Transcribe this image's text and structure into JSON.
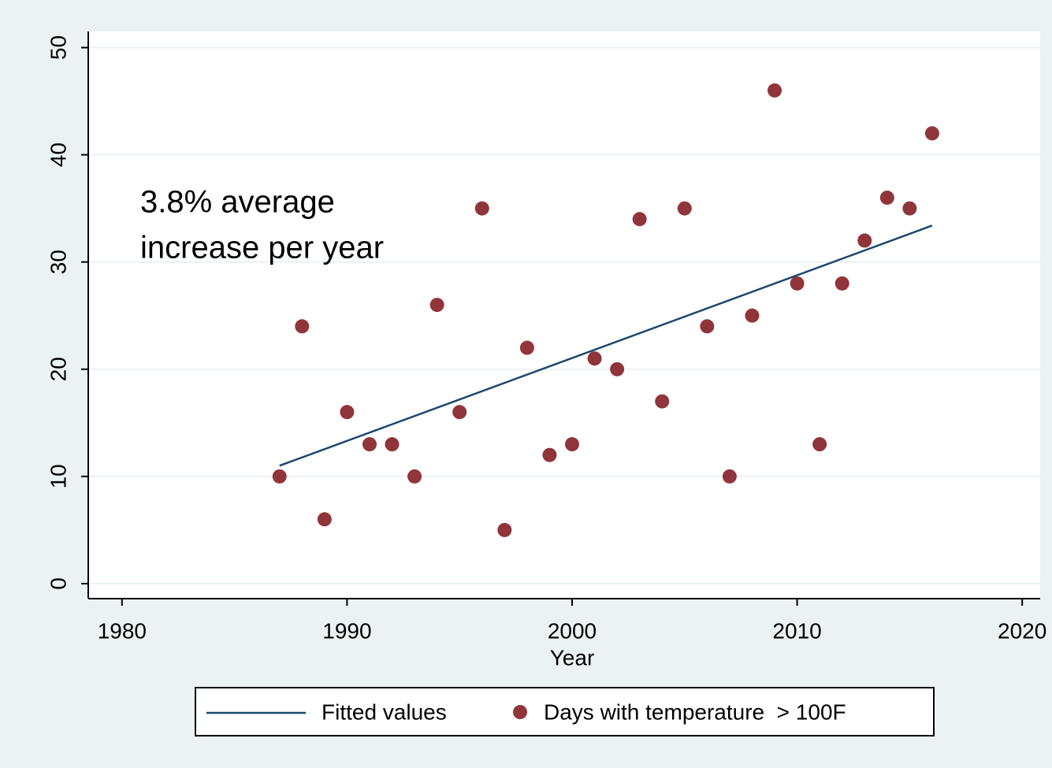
{
  "chart_data": {
    "type": "scatter",
    "xlabel": "Year",
    "annotation": [
      "3.8% average",
      "increase per year"
    ],
    "xlim": [
      1978.5,
      2020.8
    ],
    "xticks": [
      1980,
      1990,
      2000,
      2010,
      2020
    ],
    "ylim": [
      -1.4,
      51.5
    ],
    "yticks": [
      0,
      10,
      20,
      30,
      40,
      50
    ],
    "grid": true,
    "series": [
      {
        "name": "Fitted values",
        "type": "line",
        "color": "#1a476f",
        "x": [
          1987,
          2016
        ],
        "values": [
          11.0,
          33.4
        ]
      },
      {
        "name": "Days with temperature  > 100F",
        "type": "scatter",
        "color": "#90353b",
        "x": [
          1987,
          1988,
          1989,
          1990,
          1991,
          1992,
          1993,
          1994,
          1995,
          1996,
          1997,
          1998,
          1999,
          2000,
          2001,
          2002,
          2003,
          2004,
          2005,
          2006,
          2007,
          2008,
          2009,
          2010,
          2011,
          2012,
          2013,
          2014,
          2015,
          2016
        ],
        "values": [
          10,
          24,
          6,
          16,
          13,
          13,
          10,
          26,
          16,
          35,
          5,
          22,
          12,
          13,
          21,
          20,
          34,
          17,
          35,
          24,
          10,
          25,
          46,
          28,
          13,
          28,
          32,
          36,
          35,
          42
        ]
      }
    ]
  }
}
